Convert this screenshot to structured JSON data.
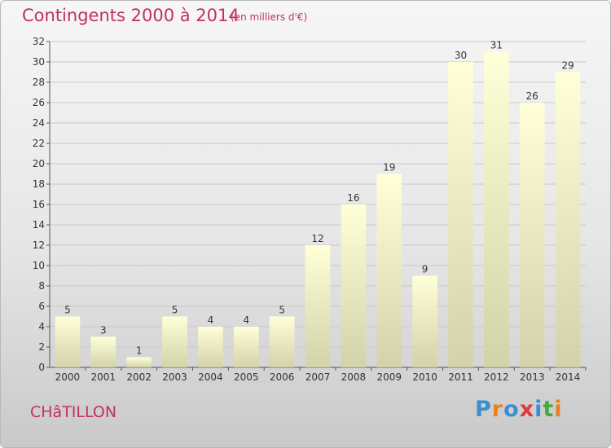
{
  "header": {
    "title": "Contingents 2000 à 2014",
    "subtitle": "(en milliers d'€)"
  },
  "footer": {
    "commune": "CHâTILLON",
    "logo_letters": [
      "P",
      "r",
      "o",
      "x",
      "i",
      "t",
      "i"
    ],
    "logo_colors": [
      "#3a8fd0",
      "#e8821e",
      "#3a8fd0",
      "#e23a3a",
      "#3a8fd0",
      "#49a83b",
      "#e8821e"
    ]
  },
  "colors": {
    "bar_top": "#ffffd8",
    "bar_bottom": "#d3d3aa",
    "grid": "#c8c8c8",
    "title": "#c0306a"
  },
  "chart_data": {
    "type": "bar",
    "title": "Contingents 2000 à 2014",
    "subtitle": "(en milliers d'€)",
    "xlabel": "",
    "ylabel": "",
    "categories": [
      "2000",
      "2001",
      "2002",
      "2003",
      "2004",
      "2005",
      "2006",
      "2007",
      "2008",
      "2009",
      "2010",
      "2011",
      "2012",
      "2013",
      "2014"
    ],
    "values": [
      5,
      3,
      1,
      5,
      4,
      4,
      5,
      12,
      16,
      19,
      9,
      30,
      31,
      26,
      29
    ],
    "ylim": [
      0,
      32
    ],
    "yticks": [
      0,
      2,
      4,
      6,
      8,
      10,
      12,
      14,
      16,
      18,
      20,
      22,
      24,
      26,
      28,
      30,
      32
    ],
    "grid": true,
    "data_labels": true
  }
}
